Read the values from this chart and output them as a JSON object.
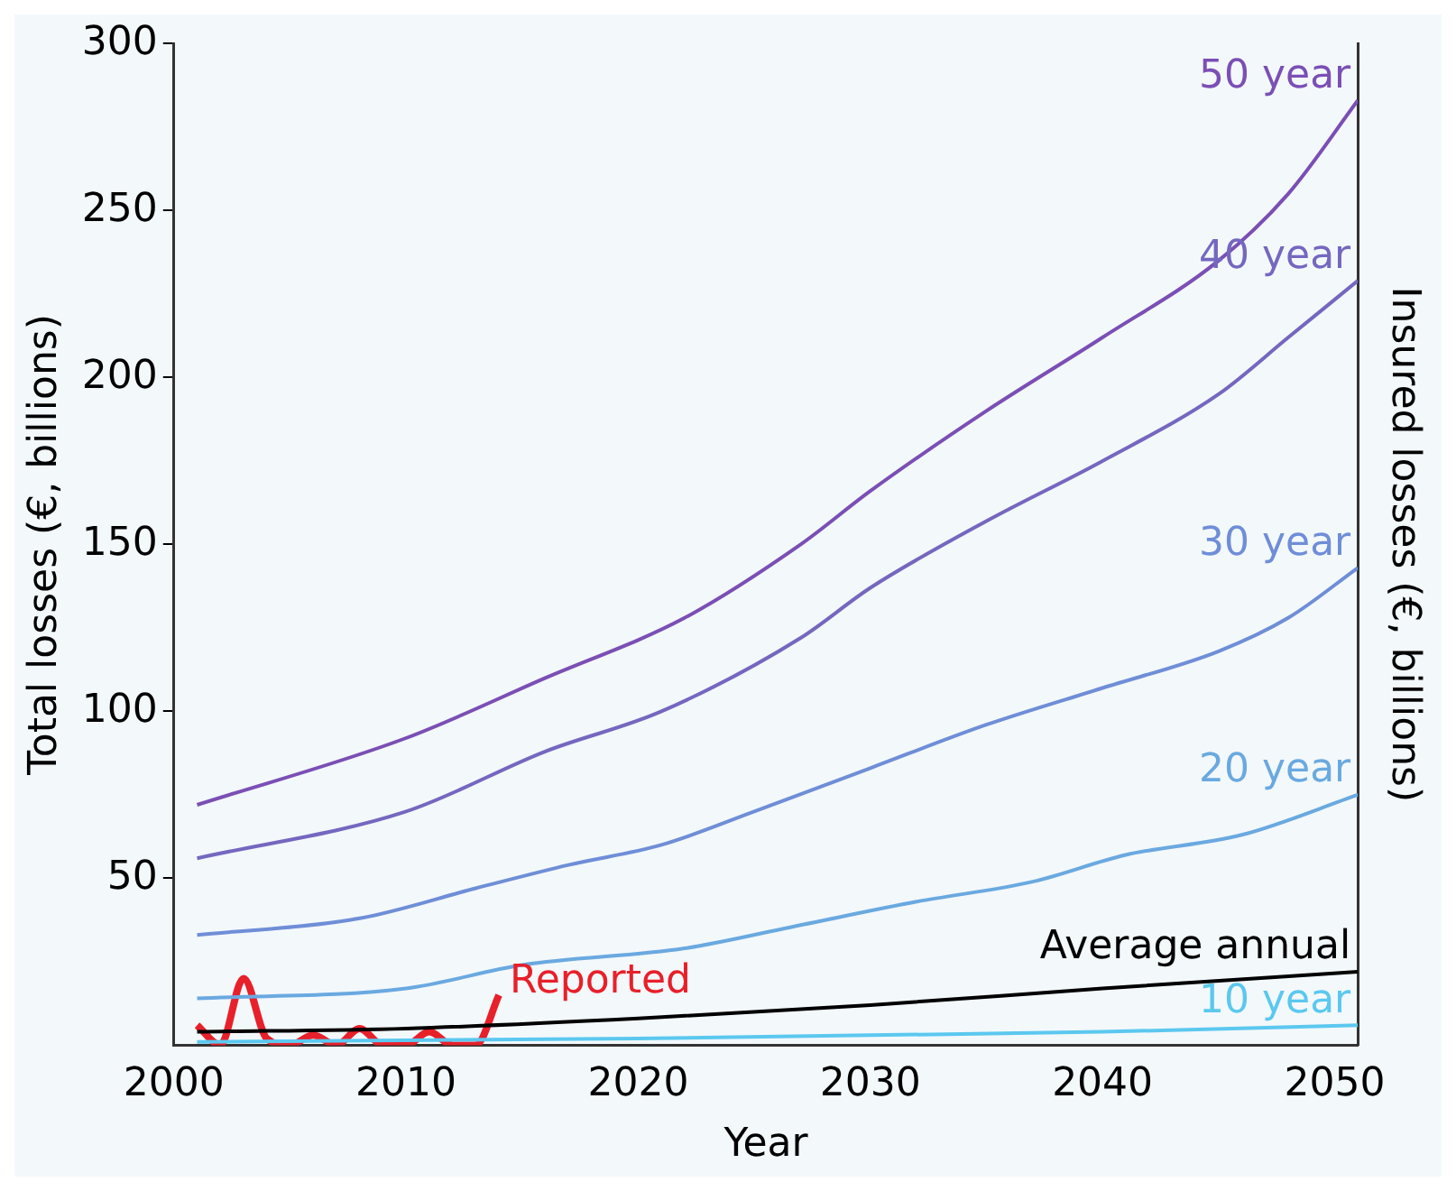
{
  "chart_data": {
    "type": "line",
    "xlabel": "Year",
    "ylabel": "Total losses (€, billions)",
    "y2label": "Insured losses (€, billions)",
    "xlim": [
      2000,
      2051
    ],
    "xticks": [
      2000,
      2010,
      2020,
      2030,
      2040,
      2050
    ],
    "ylim": [
      0,
      300
    ],
    "yticks": [
      50,
      100,
      150,
      200,
      250,
      300
    ],
    "grid": false,
    "legend": false,
    "marker": "none",
    "series": [
      {
        "name": "50 year",
        "color": "#7b4fb5",
        "x": [
          2001,
          2010,
          2016,
          2022,
          2027,
          2030,
          2035,
          2040,
          2045,
          2048,
          2051
        ],
        "values": [
          72,
          92,
          110,
          128,
          150,
          166,
          190,
          212,
          235,
          255,
          283
        ]
      },
      {
        "name": "40 year",
        "color": "#7567c0",
        "x": [
          2001,
          2010,
          2016,
          2021,
          2027,
          2030,
          2035,
          2040,
          2045,
          2048,
          2051
        ],
        "values": [
          56,
          70,
          88,
          100,
          122,
          137,
          157,
          175,
          195,
          212,
          229
        ]
      },
      {
        "name": "30 year",
        "color": "#6f8ed8",
        "x": [
          2001,
          2008,
          2013,
          2017,
          2021,
          2025,
          2030,
          2035,
          2040,
          2045,
          2048,
          2051
        ],
        "values": [
          33,
          38,
          47,
          54,
          60,
          70,
          83,
          96,
          107,
          118,
          128,
          143
        ]
      },
      {
        "name": "20 year",
        "color": "#6aa9e0",
        "x": [
          2001,
          2010,
          2015,
          2022,
          2027,
          2032,
          2037,
          2041,
          2046,
          2051
        ],
        "values": [
          14,
          17,
          24,
          29,
          36,
          43,
          49,
          57,
          63,
          75
        ]
      },
      {
        "name": "10 year",
        "color": "#5bc8ef",
        "x": [
          2001,
          2020,
          2030,
          2040,
          2051
        ],
        "values": [
          1,
          2,
          3,
          4,
          6
        ]
      },
      {
        "name": "Average annual",
        "color": "#000000",
        "x": [
          2001,
          2010,
          2020,
          2030,
          2040,
          2051
        ],
        "values": [
          4,
          5,
          8,
          12,
          17,
          22
        ]
      },
      {
        "name": "Reported",
        "color": "#e8202a",
        "x": [
          2001,
          2002,
          2003,
          2004,
          2005,
          2006,
          2007,
          2008,
          2009,
          2010,
          2011,
          2012,
          2013,
          2014
        ],
        "values": [
          6,
          0,
          20,
          2,
          0,
          3,
          0,
          5,
          0,
          0,
          4,
          0,
          0,
          15
        ]
      }
    ]
  }
}
